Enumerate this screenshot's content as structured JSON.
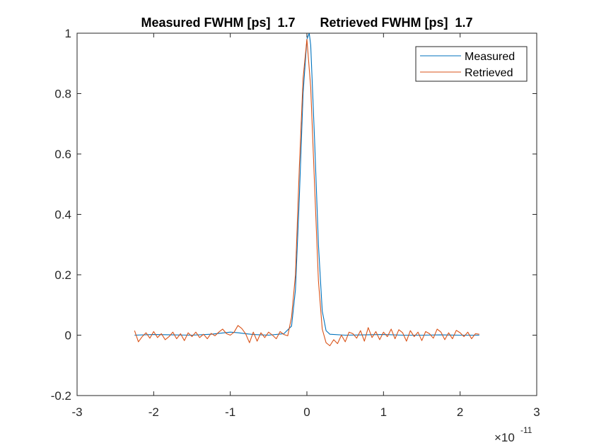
{
  "chart_data": {
    "type": "line",
    "title": "Measured FWHM [ps]  1.7       Retrieved FWHM [ps]  1.7",
    "xlabel": "",
    "ylabel": "",
    "xlim": [
      -3,
      3
    ],
    "ylim": [
      -0.2,
      1
    ],
    "x_scale_label": "×10",
    "x_scale_exponent": "-11",
    "xticks": [
      -3,
      -2,
      -1,
      0,
      1,
      2,
      3
    ],
    "xtick_labels": [
      "-3",
      "-2",
      "-1",
      "0",
      "1",
      "2",
      "3"
    ],
    "yticks": [
      -0.2,
      0,
      0.2,
      0.4,
      0.6,
      0.8,
      1
    ],
    "ytick_labels": [
      "-0.2",
      "0",
      "0.2",
      "0.4",
      "0.6",
      "0.8",
      "1"
    ],
    "grid": false,
    "legend_position": "top-right",
    "series": [
      {
        "name": "Measured",
        "color": "#0072BD",
        "x": [
          -2.25,
          -2.0,
          -1.75,
          -1.5,
          -1.25,
          -1.0,
          -0.9,
          -0.8,
          -0.7,
          -0.5,
          -0.3,
          -0.2,
          -0.15,
          -0.1,
          -0.05,
          0.0,
          0.03,
          0.05,
          0.1,
          0.15,
          0.2,
          0.25,
          0.3,
          0.5,
          0.75,
          1.0,
          1.25,
          1.5,
          1.75,
          2.0,
          2.25
        ],
        "y": [
          0.0,
          0.002,
          0.001,
          0.0,
          0.003,
          0.01,
          0.008,
          0.005,
          0.002,
          0.0,
          0.005,
          0.03,
          0.15,
          0.45,
          0.8,
          0.98,
          1.0,
          0.96,
          0.65,
          0.3,
          0.08,
          0.015,
          0.003,
          0.0,
          0.001,
          0.002,
          0.0,
          0.0,
          0.001,
          0.0,
          0.0
        ]
      },
      {
        "name": "Retrieved",
        "color": "#D95319",
        "x": [
          -2.25,
          -2.2,
          -2.15,
          -2.1,
          -2.05,
          -2.0,
          -1.95,
          -1.9,
          -1.85,
          -1.8,
          -1.75,
          -1.7,
          -1.65,
          -1.6,
          -1.55,
          -1.5,
          -1.45,
          -1.4,
          -1.35,
          -1.3,
          -1.25,
          -1.2,
          -1.15,
          -1.1,
          -1.05,
          -1.0,
          -0.95,
          -0.9,
          -0.85,
          -0.8,
          -0.75,
          -0.7,
          -0.65,
          -0.6,
          -0.55,
          -0.5,
          -0.45,
          -0.4,
          -0.35,
          -0.3,
          -0.25,
          -0.2,
          -0.15,
          -0.1,
          -0.05,
          0.0,
          0.05,
          0.1,
          0.15,
          0.2,
          0.25,
          0.3,
          0.35,
          0.4,
          0.45,
          0.5,
          0.55,
          0.6,
          0.65,
          0.7,
          0.75,
          0.8,
          0.85,
          0.9,
          0.95,
          1.0,
          1.05,
          1.1,
          1.15,
          1.2,
          1.25,
          1.3,
          1.35,
          1.4,
          1.45,
          1.5,
          1.55,
          1.6,
          1.65,
          1.7,
          1.75,
          1.8,
          1.85,
          1.9,
          1.95,
          2.0,
          2.05,
          2.1,
          2.15,
          2.2,
          2.25
        ],
        "y": [
          0.015,
          -0.022,
          -0.005,
          0.008,
          -0.01,
          0.012,
          -0.008,
          0.005,
          -0.015,
          -0.005,
          0.01,
          -0.012,
          0.005,
          -0.018,
          0.008,
          -0.005,
          0.01,
          -0.008,
          0.003,
          -0.012,
          0.006,
          -0.002,
          0.01,
          0.02,
          0.005,
          0.0,
          0.01,
          0.032,
          0.022,
          0.005,
          -0.025,
          0.01,
          -0.02,
          0.008,
          -0.008,
          0.01,
          0.0,
          -0.012,
          0.012,
          0.002,
          -0.002,
          0.06,
          0.2,
          0.55,
          0.85,
          0.98,
          0.82,
          0.5,
          0.18,
          0.02,
          -0.025,
          -0.035,
          -0.015,
          -0.028,
          0.0,
          -0.022,
          0.01,
          0.005,
          -0.01,
          0.015,
          -0.02,
          0.025,
          -0.008,
          0.012,
          -0.015,
          0.01,
          -0.005,
          0.02,
          -0.012,
          0.018,
          0.008,
          -0.02,
          0.015,
          -0.005,
          0.01,
          -0.018,
          0.012,
          0.005,
          -0.01,
          0.02,
          0.01,
          -0.015,
          0.008,
          -0.012,
          0.016,
          0.008,
          -0.005,
          0.01,
          -0.012,
          0.005,
          0.003
        ]
      }
    ]
  }
}
